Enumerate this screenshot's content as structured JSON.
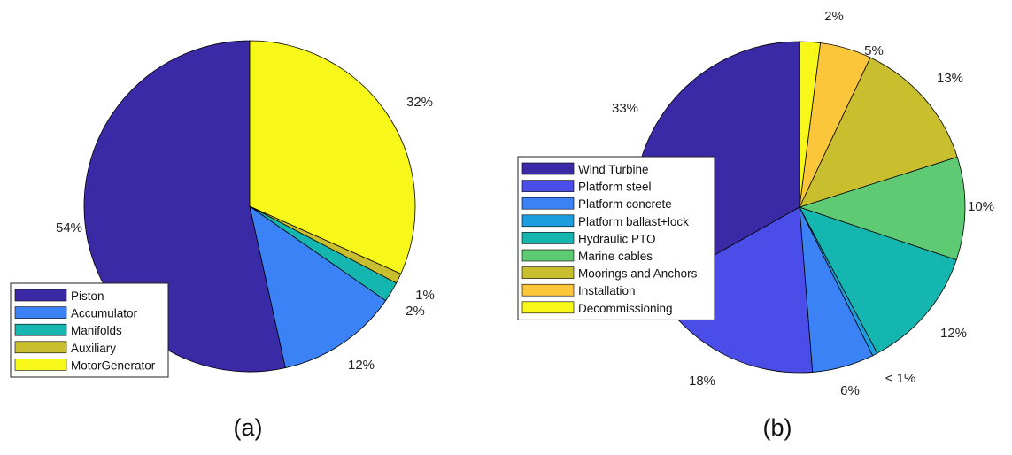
{
  "chart_data": [
    {
      "type": "pie",
      "caption": "(a)",
      "categories": [
        "Piston",
        "Accumulator",
        "Manifolds",
        "Auxiliary",
        "MotorGenerator"
      ],
      "values": [
        54,
        12,
        2,
        1,
        32
      ],
      "labels": [
        "54%",
        "12%",
        "2%",
        "1%",
        "32%"
      ],
      "colors": [
        "#3b2aa6",
        "#3b82f6",
        "#16b6b0",
        "#c9be2e",
        "#f7f71a"
      ],
      "legend_position": "bottom-left"
    },
    {
      "type": "pie",
      "caption": "(b)",
      "categories": [
        "Wind Turbine",
        "Platform steel",
        "Platform concrete",
        "Platform ballast+lock",
        "Hydraulic PTO",
        "Marine cables",
        "Moorings and Anchors",
        "Installation",
        "Decommissioning"
      ],
      "values": [
        33,
        18,
        6,
        0.5,
        12,
        10,
        13,
        5,
        2
      ],
      "labels": [
        "33%",
        "18%",
        "6%",
        "< 1%",
        "12%",
        "10%",
        "13%",
        "5%",
        "2%"
      ],
      "colors": [
        "#3b2aa6",
        "#4a4de8",
        "#3b82f6",
        "#1c9de0",
        "#16b6b0",
        "#5fca74",
        "#c9be2e",
        "#fbc63a",
        "#f7f71a"
      ],
      "legend_position": "left"
    }
  ]
}
